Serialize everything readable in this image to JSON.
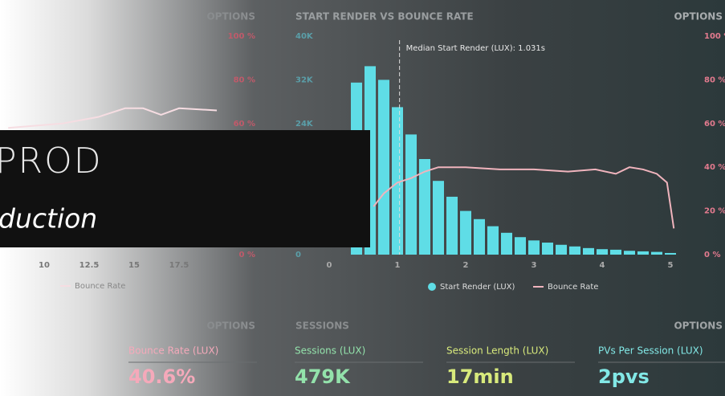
{
  "chart_data": [
    {
      "type": "line",
      "options": "OPTIONS",
      "xticks": [
        10,
        12.5,
        15,
        17.5
      ],
      "xlim": [
        7.5,
        20
      ],
      "ylim": [
        0,
        100
      ],
      "yticks": [
        {
          "value": 0,
          "label": "0 %"
        },
        {
          "value": 60,
          "label": "60 %"
        },
        {
          "value": 80,
          "label": "80 %"
        },
        {
          "value": 100,
          "label": "100 %"
        }
      ],
      "series": [
        {
          "name": "Bounce Rate",
          "color": "#f6dde2",
          "x": [
            8,
            11,
            13,
            14.5,
            15.5,
            16.5,
            17.5,
            19.6
          ],
          "values": [
            58,
            60,
            63,
            67,
            67,
            64,
            67,
            66
          ]
        }
      ]
    },
    {
      "type": "histogram",
      "title": "START RENDER VS BOUNCE RATE",
      "options": "OPTIONS",
      "annotation": "Median Start Render (LUX): 1.031s",
      "median": 1.031,
      "xlim": [
        0,
        5.3
      ],
      "xticks": [
        0,
        1,
        2,
        3,
        4,
        5
      ],
      "ylim": [
        0,
        40000
      ],
      "yticks": [
        {
          "value": 0,
          "label": "0"
        },
        {
          "value": 24000,
          "label": "24K"
        },
        {
          "value": 32000,
          "label": "32K"
        },
        {
          "value": 40000,
          "label": "40K"
        }
      ],
      "y2lim": [
        0,
        100
      ],
      "y2ticks": [
        {
          "value": 0,
          "label": "0 %"
        },
        {
          "value": 20,
          "label": "20 %"
        },
        {
          "value": 40,
          "label": "40 %"
        },
        {
          "value": 60,
          "label": "60 %"
        },
        {
          "value": 80,
          "label": "80 %"
        },
        {
          "value": 100,
          "label": "100 %"
        }
      ],
      "bins": [
        0.3,
        0.5,
        0.7,
        0.9,
        1.1,
        1.3,
        1.5,
        1.7,
        1.9,
        2.1,
        2.3,
        2.5,
        2.7,
        2.9,
        3.1,
        3.3,
        3.5,
        3.7,
        3.9,
        4.1,
        4.3,
        4.5,
        4.7,
        4.9,
        5.1
      ],
      "series": [
        {
          "name": "Start Render (LUX)",
          "color": "#5fdde6",
          "values": [
            31500,
            34500,
            32000,
            27000,
            22000,
            17500,
            13500,
            10600,
            8000,
            6500,
            5200,
            4000,
            3200,
            2600,
            2200,
            1800,
            1500,
            1200,
            1000,
            900,
            700,
            600,
            500,
            300
          ]
        },
        {
          "name": "Bounce Rate",
          "color": "#f0b4bd",
          "axis": "y2",
          "x": [
            0.65,
            0.8,
            1.0,
            1.2,
            1.4,
            1.6,
            2.0,
            2.5,
            3.0,
            3.5,
            3.9,
            4.2,
            4.4,
            4.6,
            4.8,
            4.95,
            5.05
          ],
          "values": [
            22,
            28,
            33,
            35,
            38,
            40,
            40,
            39,
            39,
            38,
            39,
            37,
            40,
            39,
            37,
            33,
            12
          ]
        }
      ]
    }
  ],
  "overlay": {
    "title": "PROD",
    "subtitle": "duction"
  },
  "bottom": {
    "left_options": "OPTIONS",
    "sessions_title": "SESSIONS",
    "sessions_options": "OPTIONS",
    "metrics": [
      {
        "label": "Bounce Rate (LUX)",
        "value": "40.6%",
        "color": "#f5a9ba"
      },
      {
        "label": "Sessions (LUX)",
        "value": "479K",
        "color": "#93e2ab"
      },
      {
        "label": "Session Length (LUX)",
        "value": "17min",
        "color": "#d8ea7c"
      },
      {
        "label": "PVs Per Session (LUX)",
        "value": "2pvs",
        "color": "#82e8e6"
      }
    ]
  }
}
